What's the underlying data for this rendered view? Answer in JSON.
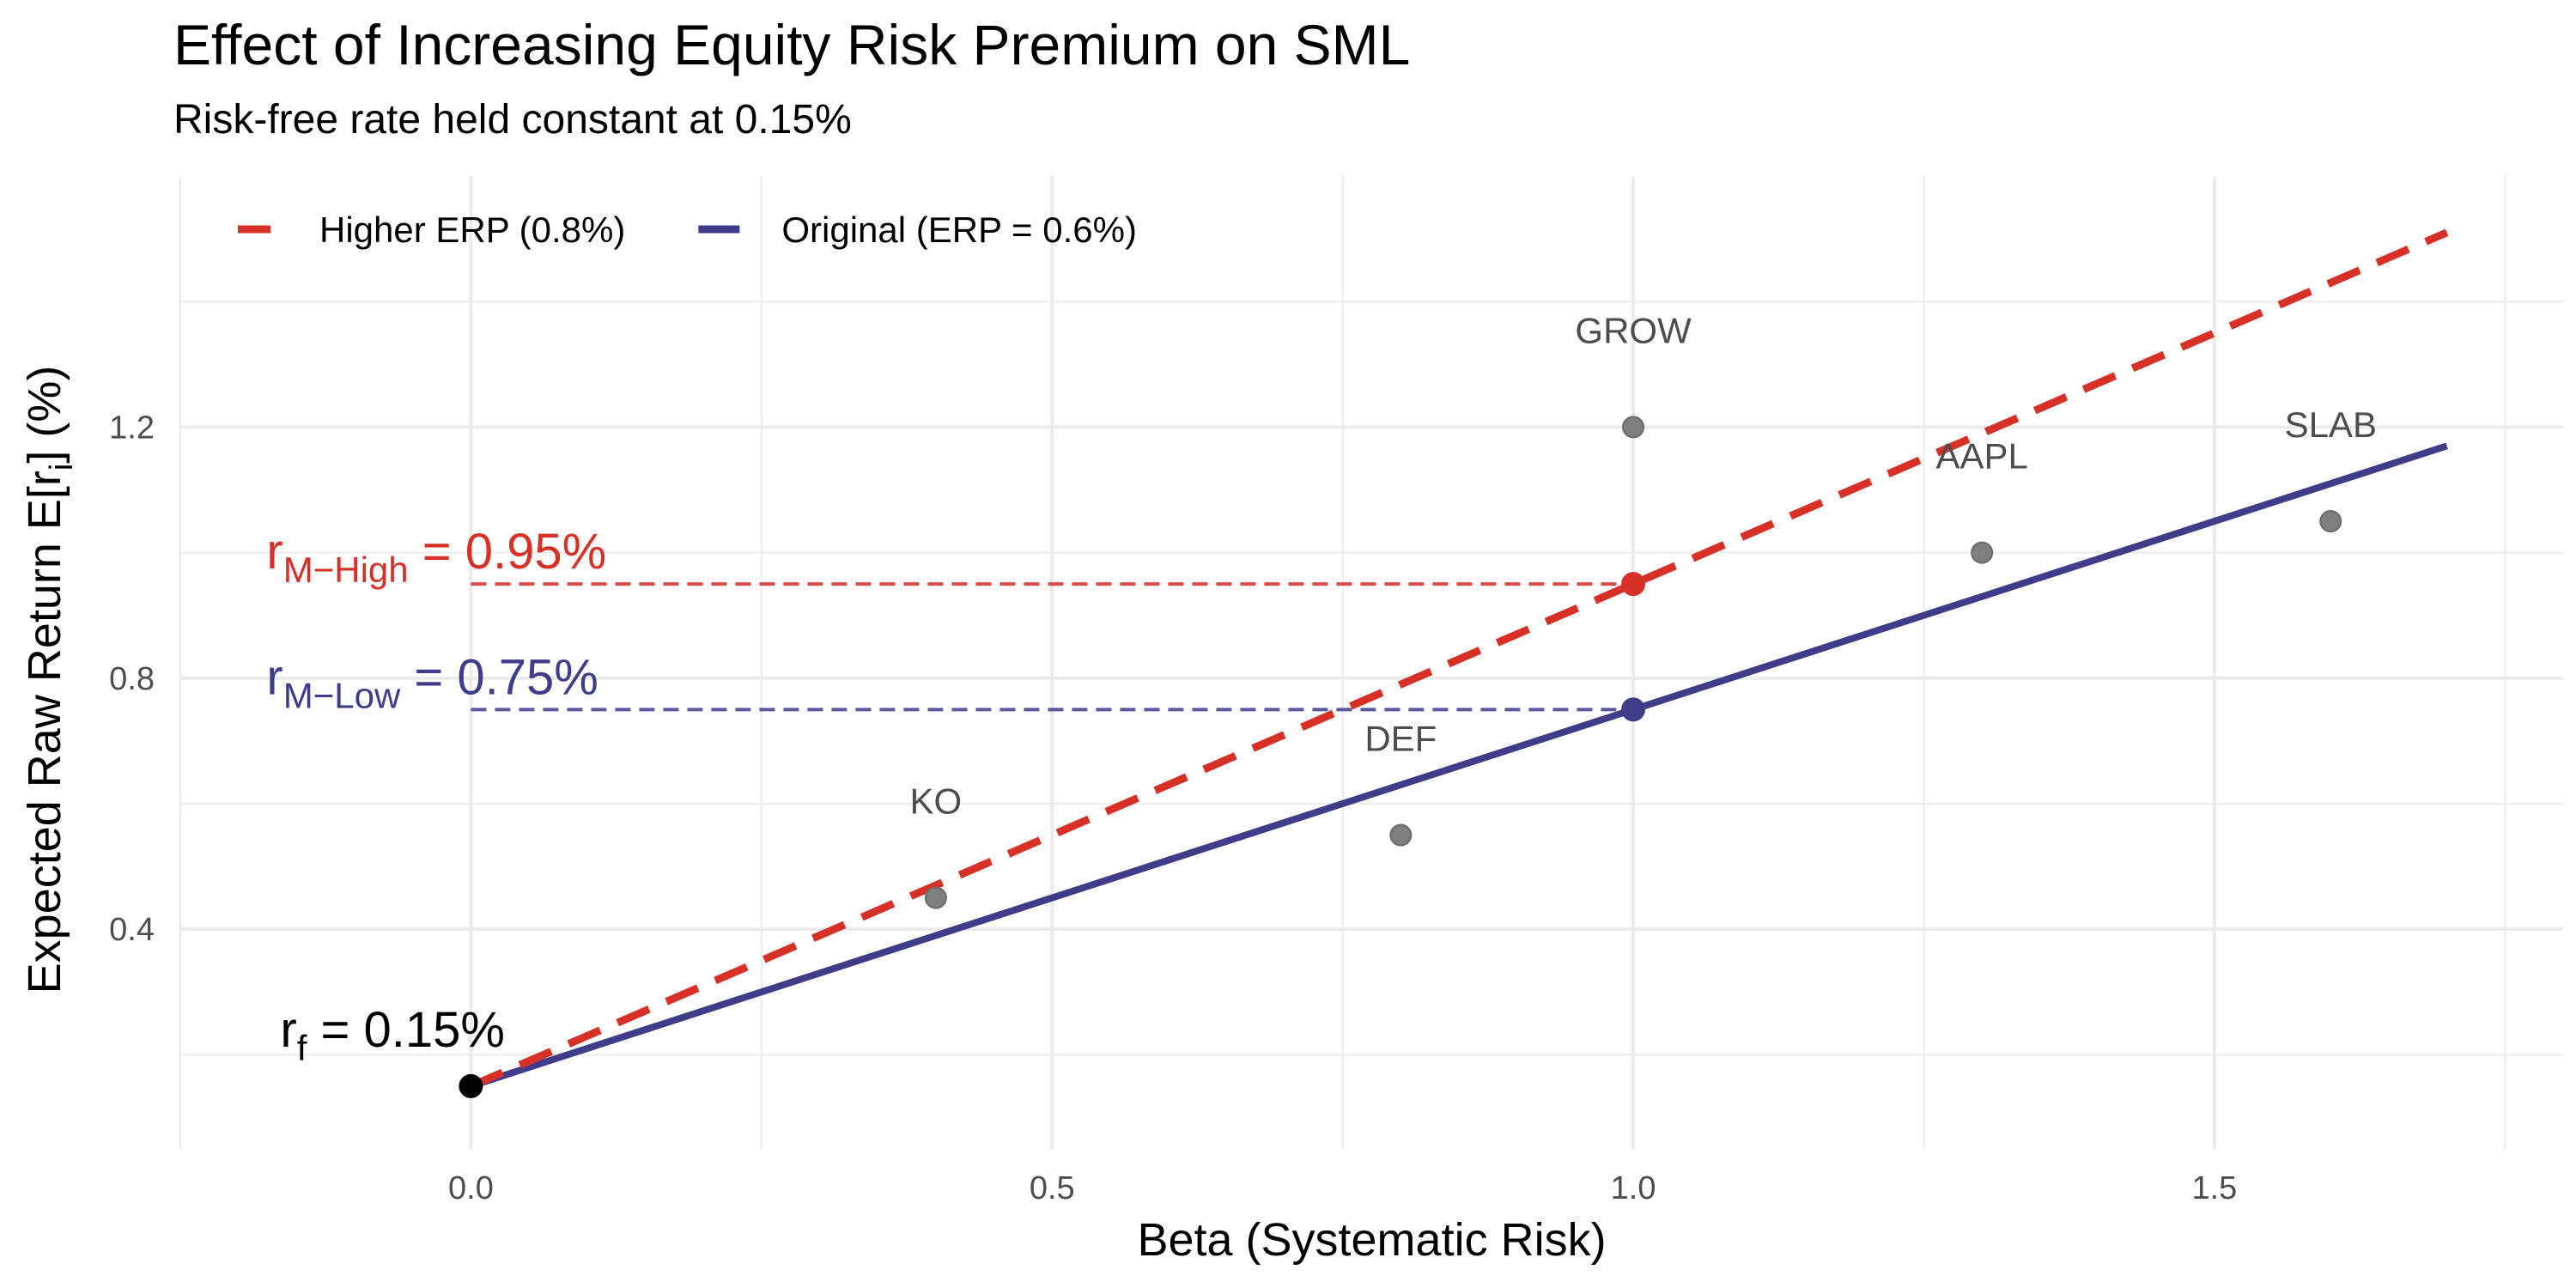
{
  "chart_data": {
    "type": "line",
    "title": "Effect of Increasing Equity Risk Premium on SML",
    "subtitle": "Risk-free rate held constant at 0.15%",
    "xlabel": "Beta (Systematic Risk)",
    "ylabel": "Expected Raw Return",
    "ylabel_unit": "(%)",
    "ylabel_expr": {
      "base": "E[r",
      "sub": "i",
      "close": "]"
    },
    "xlim": [
      -0.25,
      1.8
    ],
    "ylim": [
      0.05,
      1.6
    ],
    "x_ticks": [
      0.0,
      0.5,
      1.0,
      1.5
    ],
    "x_tick_labels": [
      "0.0",
      "0.5",
      "1.0",
      "1.5"
    ],
    "y_ticks": [
      0.4,
      0.8,
      1.2
    ],
    "y_tick_labels": [
      "0.4",
      "0.8",
      "1.2"
    ],
    "grid": true,
    "legend_position": "top-left",
    "series": [
      {
        "name": "Higher ERP (0.8%)",
        "style": "dashed",
        "color": "#d73027",
        "x": [
          0.0,
          1.7
        ],
        "y": [
          0.15,
          1.51
        ]
      },
      {
        "name": "Original (ERP = 0.6%)",
        "style": "solid",
        "color": "#3f3d8a",
        "x": [
          0.0,
          1.7
        ],
        "y": [
          0.15,
          1.17
        ]
      }
    ],
    "points": [
      {
        "label": "KO",
        "x": 0.4,
        "y": 0.45
      },
      {
        "label": "DEF",
        "x": 0.8,
        "y": 0.55
      },
      {
        "label": "GROW",
        "x": 1.0,
        "y": 1.2
      },
      {
        "label": "AAPL",
        "x": 1.3,
        "y": 1.0
      },
      {
        "label": "SLAB",
        "x": 1.6,
        "y": 1.05
      }
    ],
    "annotations": [
      {
        "id": "rf",
        "x": 0.0,
        "y": 0.15,
        "base": "r",
        "sub": "f",
        "eq": " = ",
        "value": "0.15%",
        "color": "#000000"
      },
      {
        "id": "high",
        "x": 1.0,
        "y": 0.95,
        "base": "r",
        "sub": "M−High",
        "eq": " = ",
        "value": "0.95%",
        "color": "#d73027"
      },
      {
        "id": "low",
        "x": 1.0,
        "y": 0.75,
        "base": "r",
        "sub": "M−Low",
        "eq": " = ",
        "value": "0.75%",
        "color": "#3f3d8a"
      }
    ],
    "colors": {
      "grid": "#ebebeb",
      "points": "#7f7f7f",
      "high": "#d73027",
      "low": "#3f3d8a",
      "rf_point": "#000000"
    }
  }
}
